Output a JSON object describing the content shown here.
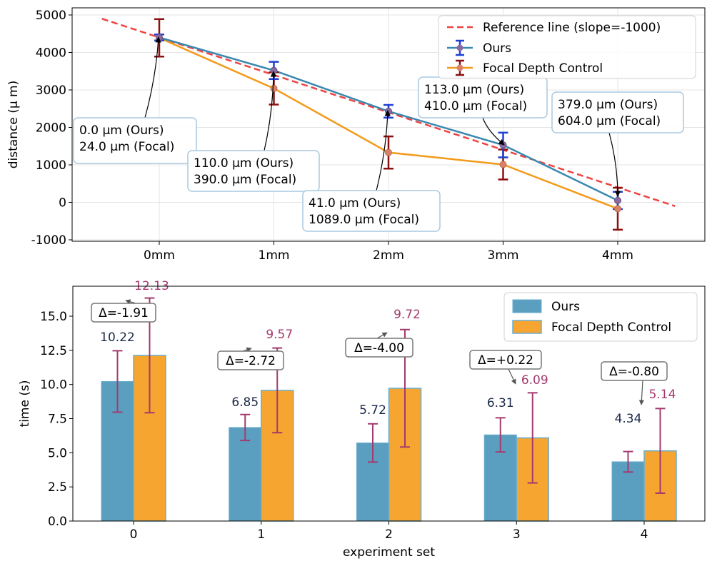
{
  "chart_data": [
    {
      "type": "line",
      "ylabel": "distance (μ m)",
      "ylim": [
        -1000,
        5000
      ],
      "yticks": [
        "-1000",
        "0",
        "1000",
        "2000",
        "3000",
        "4000",
        "5000"
      ],
      "categories": [
        "0mm",
        "1mm",
        "2mm",
        "3mm",
        "4mm"
      ],
      "grid": true,
      "legend_position": "top-right",
      "reference": {
        "name": "Reference line (slope=-1000)",
        "x": [
          -0.5,
          4.5
        ],
        "y": [
          4900,
          -100
        ],
        "color": "#ee4444"
      },
      "series": [
        {
          "name": "Ours",
          "values": [
            4400,
            3520,
            2430,
            1530,
            50
          ],
          "err": [
            80,
            230,
            170,
            330,
            230
          ],
          "color": "#3a88b0",
          "errColor": "#1f3fd0"
        },
        {
          "name": "Focal Depth Control",
          "values": [
            4390,
            3040,
            1330,
            1010,
            -170
          ],
          "err": [
            500,
            430,
            430,
            400,
            560
          ],
          "color": "#f39a1a",
          "errColor": "#8b1010"
        }
      ],
      "annotations": [
        {
          "ours": "0.0 μm (Ours)",
          "focal": "24.0 μm (Focal)"
        },
        {
          "ours": "110.0 μm (Ours)",
          "focal": "390.0 μm (Focal)"
        },
        {
          "ours": "41.0 μm (Ours)",
          "focal": "1089.0 μm (Focal)"
        },
        {
          "ours": "113.0 μm (Ours)",
          "focal": "410.0 μm (Focal)"
        },
        {
          "ours": "379.0 μm (Ours)",
          "focal": "604.0 μm (Focal)"
        }
      ]
    },
    {
      "type": "bar",
      "xlabel": "experiment set",
      "ylabel": "time (s)",
      "ylim": [
        0,
        17.5
      ],
      "yticks": [
        "0.0",
        "2.5",
        "5.0",
        "7.5",
        "10.0",
        "12.5",
        "15.0"
      ],
      "categories": [
        "0",
        "1",
        "2",
        "3",
        "4"
      ],
      "legend_position": "top-right",
      "series": [
        {
          "name": "Ours",
          "values": [
            10.22,
            6.85,
            5.72,
            6.31,
            4.34
          ],
          "labels": [
            "10.22",
            "6.85",
            "5.72",
            "6.31",
            "4.34"
          ],
          "err": [
            2.25,
            0.95,
            1.4,
            1.25,
            0.75
          ],
          "color": "#5a9fc0",
          "labelColor": "#1a2a48"
        },
        {
          "name": "Focal Depth Control",
          "values": [
            12.13,
            9.57,
            9.72,
            6.09,
            5.14
          ],
          "labels": [
            "12.13",
            "9.57",
            "9.72",
            "6.09",
            "5.14"
          ],
          "err": [
            4.2,
            3.1,
            4.3,
            3.3,
            3.1
          ],
          "color": "#f5a530",
          "labelColor": "#a33a6e"
        }
      ],
      "errColor": "#a33a6e",
      "deltas": [
        "Δ=-1.91",
        "Δ=-2.72",
        "Δ=-4.00",
        "Δ=+0.22",
        "Δ=-0.80"
      ]
    }
  ]
}
